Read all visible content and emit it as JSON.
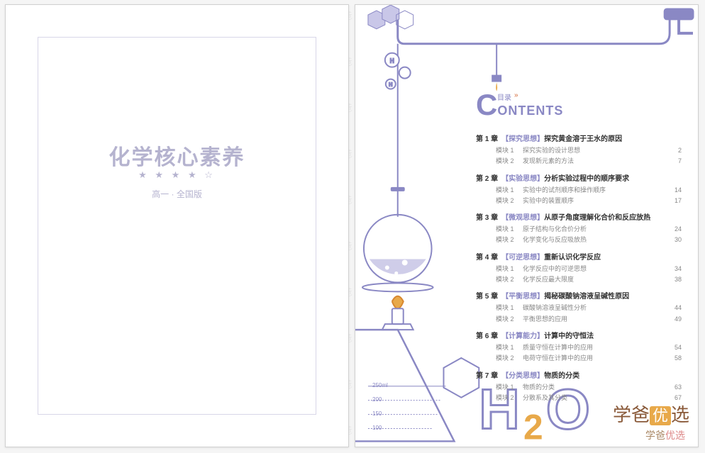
{
  "colors": {
    "accent": "#8a88c4",
    "accent_light": "#b5b3cf",
    "orange": "#e8a94a",
    "frame": "#d8d6e8",
    "text": "#555555",
    "muted": "#888888",
    "bg": "#ffffff"
  },
  "cover": {
    "title": "化学核心素养",
    "stars": "★ ★ ★ ★ ☆",
    "subtitle": "高一 · 全国版"
  },
  "contents_header": {
    "mulu": "目录",
    "arrows": "»",
    "big_c": "C",
    "rest": "ONTENTS"
  },
  "chapters": [
    {
      "num": "第 1 章",
      "tag": "【探究思想】",
      "title": "探究黄金溶于王水的原因",
      "modules": [
        {
          "label": "模块 1",
          "title": "探究实验的设计思想",
          "page": "2"
        },
        {
          "label": "模块 2",
          "title": "发现新元素的方法",
          "page": "7"
        }
      ]
    },
    {
      "num": "第 2 章",
      "tag": "【实验思想】",
      "title": "分析实验过程中的顺序要求",
      "modules": [
        {
          "label": "模块 1",
          "title": "实验中的试剂顺序和操作顺序",
          "page": "14"
        },
        {
          "label": "模块 2",
          "title": "实验中的装置顺序",
          "page": "17"
        }
      ]
    },
    {
      "num": "第 3 章",
      "tag": "【微观思想】",
      "title": "从原子角度理解化合价和反应放热",
      "modules": [
        {
          "label": "模块 1",
          "title": "原子结构与化合价分析",
          "page": "24"
        },
        {
          "label": "模块 2",
          "title": "化学变化与反应吸放热",
          "page": "30"
        }
      ]
    },
    {
      "num": "第 4 章",
      "tag": "【可逆思想】",
      "title": "重新认识化学反应",
      "modules": [
        {
          "label": "模块 1",
          "title": "化学反应中的可逆思想",
          "page": "34"
        },
        {
          "label": "模块 2",
          "title": "化学反应最大限度",
          "page": "38"
        }
      ]
    },
    {
      "num": "第 5 章",
      "tag": "【平衡思想】",
      "title": "揭秘碳酸钠溶液呈碱性原因",
      "modules": [
        {
          "label": "模块 1",
          "title": "碳酸钠溶液呈碱性分析",
          "page": "44"
        },
        {
          "label": "模块 2",
          "title": "平衡思想的应用",
          "page": "49"
        }
      ]
    },
    {
      "num": "第 6 章",
      "tag": "【计算能力】",
      "title": "计算中的守恒法",
      "modules": [
        {
          "label": "模块 1",
          "title": "质量守恒在计算中的应用",
          "page": "54"
        },
        {
          "label": "模块 2",
          "title": "电荷守恒在计算中的应用",
          "page": "58"
        }
      ]
    },
    {
      "num": "第 7 章",
      "tag": "【分类思想】",
      "title": "物质的分类",
      "modules": [
        {
          "label": "模块 1",
          "title": "物质的分类",
          "page": "63"
        },
        {
          "label": "模块 2",
          "title": "分散系及其分类",
          "page": "67"
        }
      ]
    }
  ],
  "beaker_marks": [
    "250ml",
    "200",
    "150",
    "100"
  ],
  "h2o_label": {
    "h": "H",
    "two": "2",
    "o": "O"
  },
  "watermark_text": "学爸",
  "brand": {
    "main": "学爸",
    "box": "优",
    "sel": "选",
    "small_a": "学爸",
    "small_b": "优选"
  }
}
